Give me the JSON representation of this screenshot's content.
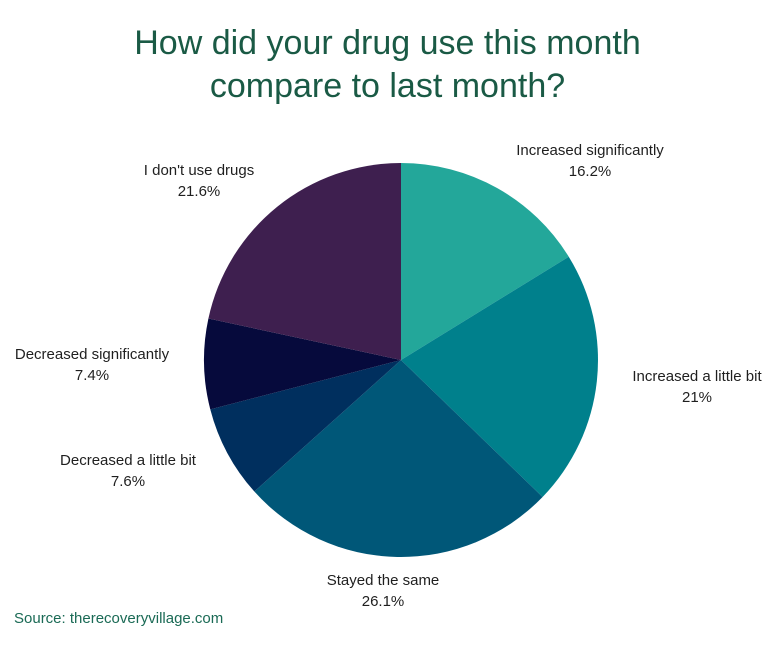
{
  "chart_data": {
    "type": "pie",
    "title_lines": [
      "How did your drug use this month",
      "compare to last month?"
    ],
    "slices": [
      {
        "label": "Increased significantly",
        "value": 16.2,
        "value_text": "16.2%",
        "color": "#23a79a"
      },
      {
        "label": "Increased a little bit",
        "value": 21,
        "value_text": "21%",
        "color": "#00808c"
      },
      {
        "label": "Stayed the same",
        "value": 26.1,
        "value_text": "26.1%",
        "color": "#005778"
      },
      {
        "label": "Decreased a little bit",
        "value": 7.6,
        "value_text": "7.6%",
        "color": "#002f5e"
      },
      {
        "label": "Decreased significantly",
        "value": 7.4,
        "value_text": "7.4%",
        "color": "#060a3c"
      },
      {
        "label": "I don't use drugs",
        "value": 21.6,
        "value_text": "21.6%",
        "color": "#3e1f4f"
      }
    ],
    "start_angle": "12 o'clock",
    "direction": "clockwise",
    "legend": "none"
  },
  "source": "Source: therecoveryvillage.com",
  "colors": {
    "title": "#1a5a45",
    "source": "#1a6a55",
    "label": "#1f1f1f"
  }
}
